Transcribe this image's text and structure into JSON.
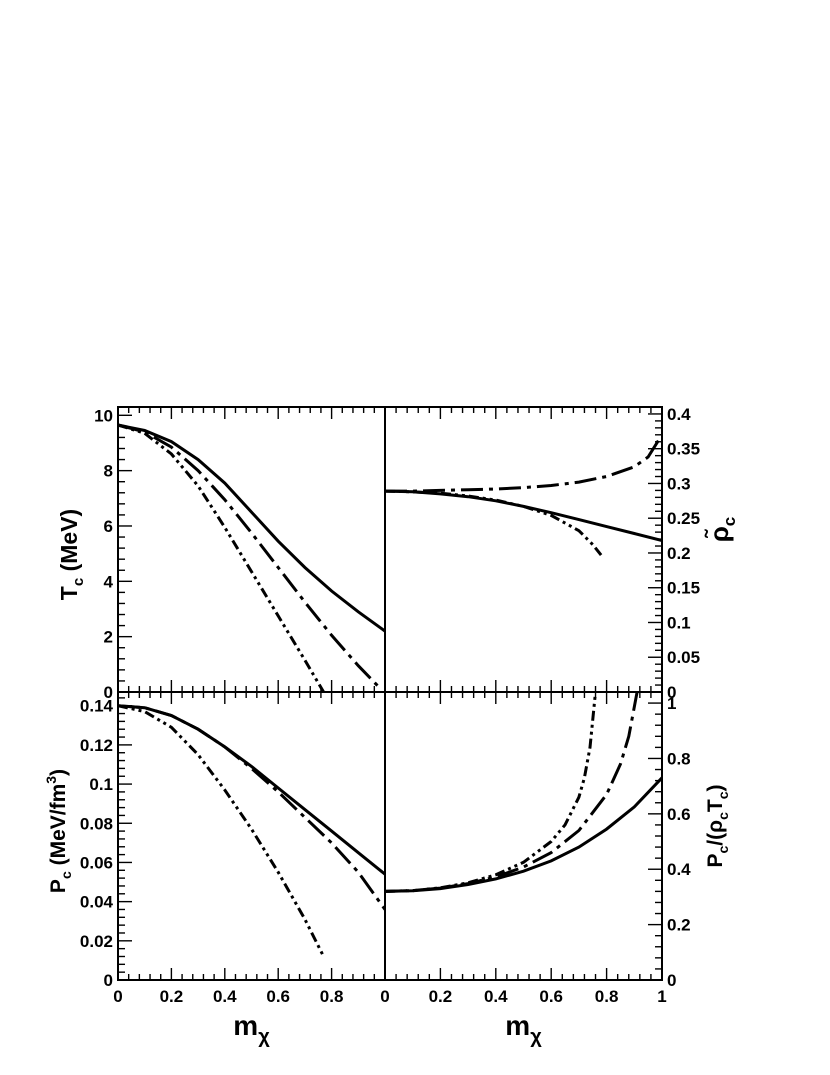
{
  "chart_data": [
    {
      "panel": "top-left",
      "type": "line",
      "ylabel_main": "T",
      "ylabel_sub": "c",
      "ylabel_unit": " (MeV)",
      "ylim": [
        0,
        10.3
      ],
      "yticks": [
        "0",
        "2",
        "4",
        "6",
        "8",
        "10"
      ],
      "ytick_values": [
        0,
        2,
        4,
        6,
        8,
        10
      ],
      "xlim": [
        0,
        1
      ],
      "series": [
        {
          "style": "solid",
          "x": [
            0,
            0.1,
            0.2,
            0.3,
            0.4,
            0.5,
            0.6,
            0.7,
            0.8,
            0.9,
            1.0
          ],
          "y": [
            9.65,
            9.45,
            9.05,
            8.4,
            7.55,
            6.5,
            5.45,
            4.5,
            3.65,
            2.9,
            2.2
          ]
        },
        {
          "style": "dash-dot",
          "x": [
            0,
            0.1,
            0.2,
            0.3,
            0.4,
            0.5,
            0.6,
            0.7,
            0.8,
            0.9,
            0.985
          ],
          "y": [
            9.65,
            9.4,
            8.85,
            8.0,
            6.95,
            5.75,
            4.5,
            3.25,
            2.05,
            0.95,
            0.1
          ]
        },
        {
          "style": "dash-dot-dot",
          "x": [
            0,
            0.1,
            0.2,
            0.3,
            0.4,
            0.5,
            0.6,
            0.7,
            0.77
          ],
          "y": [
            9.65,
            9.35,
            8.6,
            7.45,
            5.95,
            4.35,
            2.75,
            1.15,
            0.0
          ]
        }
      ]
    },
    {
      "panel": "top-right",
      "type": "line",
      "ylabel_main": "ρ̃",
      "ylabel_sub": "c",
      "ylim": [
        0,
        0.41
      ],
      "yticks": [
        "0",
        "0.05",
        "0.1",
        "0.15",
        "0.2",
        "0.25",
        "0.3",
        "0.35",
        "0.4"
      ],
      "ytick_values": [
        0,
        0.05,
        0.1,
        0.15,
        0.2,
        0.25,
        0.3,
        0.35,
        0.4
      ],
      "xlim": [
        0,
        1
      ],
      "series": [
        {
          "style": "solid",
          "x": [
            0,
            0.1,
            0.2,
            0.3,
            0.4,
            0.5,
            0.6,
            0.7,
            0.8,
            0.9,
            1.0
          ],
          "y": [
            0.289,
            0.288,
            0.285,
            0.281,
            0.275,
            0.267,
            0.258,
            0.248,
            0.238,
            0.228,
            0.218
          ]
        },
        {
          "style": "dash-dot",
          "x": [
            0,
            0.1,
            0.2,
            0.3,
            0.4,
            0.5,
            0.6,
            0.7,
            0.8,
            0.9,
            0.95,
            1.0
          ],
          "y": [
            0.289,
            0.289,
            0.29,
            0.291,
            0.292,
            0.294,
            0.297,
            0.302,
            0.31,
            0.324,
            0.338,
            0.37
          ]
        },
        {
          "style": "dash-dot-dot",
          "x": [
            0,
            0.1,
            0.2,
            0.3,
            0.4,
            0.5,
            0.6,
            0.7,
            0.75,
            0.78
          ],
          "y": [
            0.289,
            0.288,
            0.286,
            0.282,
            0.276,
            0.267,
            0.254,
            0.232,
            0.212,
            0.197
          ]
        }
      ]
    },
    {
      "panel": "bottom-left",
      "type": "line",
      "ylabel_main": "P",
      "ylabel_sub": "c",
      "ylabel_unit": " (MeV/fm",
      "ylabel_sup": "3",
      "ylabel_close": ")",
      "xlabel_main": "m",
      "xlabel_sub": "χ",
      "ylim": [
        0,
        0.147
      ],
      "yticks": [
        "0",
        "0.02",
        "0.04",
        "0.06",
        "0.08",
        "0.1",
        "0.12",
        "0.14"
      ],
      "ytick_values": [
        0,
        0.02,
        0.04,
        0.06,
        0.08,
        0.1,
        0.12,
        0.14
      ],
      "xlim": [
        0,
        1
      ],
      "xticks": [
        "0",
        "0.2",
        "0.4",
        "0.6",
        "0.8"
      ],
      "xtick_values": [
        0,
        0.2,
        0.4,
        0.6,
        0.8
      ],
      "series": [
        {
          "style": "solid",
          "x": [
            0,
            0.1,
            0.2,
            0.3,
            0.4,
            0.5,
            0.6,
            0.7,
            0.8,
            0.9,
            1.0
          ],
          "y": [
            0.14,
            0.139,
            0.135,
            0.128,
            0.119,
            0.109,
            0.098,
            0.087,
            0.076,
            0.065,
            0.054
          ]
        },
        {
          "style": "dash-dot",
          "x": [
            0,
            0.1,
            0.2,
            0.3,
            0.4,
            0.5,
            0.6,
            0.7,
            0.8,
            0.9,
            1.0
          ],
          "y": [
            0.14,
            0.139,
            0.135,
            0.128,
            0.119,
            0.108,
            0.096,
            0.083,
            0.07,
            0.055,
            0.036
          ]
        },
        {
          "style": "dash-dot-dot",
          "x": [
            0,
            0.1,
            0.2,
            0.3,
            0.4,
            0.5,
            0.6,
            0.7,
            0.77
          ],
          "y": [
            0.14,
            0.137,
            0.129,
            0.115,
            0.097,
            0.077,
            0.055,
            0.031,
            0.012
          ]
        }
      ]
    },
    {
      "panel": "bottom-right",
      "type": "line",
      "ylabel_main": "P",
      "ylabel_sub": "c",
      "ylabel_unit": "/(ρ",
      "ylabel_sub2": "c",
      "ylabel_mid": "T",
      "ylabel_sub3": "c",
      "ylabel_close": ")",
      "xlabel_main": "m",
      "xlabel_sub": "χ",
      "ylim": [
        0,
        1.04
      ],
      "yticks": [
        "0",
        "0.2",
        "0.4",
        "0.6",
        "0.8",
        "1"
      ],
      "ytick_values": [
        0,
        0.2,
        0.4,
        0.6,
        0.8,
        1
      ],
      "xlim": [
        0,
        1
      ],
      "xticks": [
        "0",
        "0.2",
        "0.4",
        "0.6",
        "0.8",
        "1"
      ],
      "xtick_values": [
        0,
        0.2,
        0.4,
        0.6,
        0.8,
        1
      ],
      "series": [
        {
          "style": "solid",
          "x": [
            0,
            0.1,
            0.2,
            0.3,
            0.4,
            0.5,
            0.6,
            0.7,
            0.8,
            0.9,
            1.0
          ],
          "y": [
            0.32,
            0.322,
            0.33,
            0.345,
            0.365,
            0.393,
            0.43,
            0.48,
            0.545,
            0.625,
            0.73
          ]
        },
        {
          "style": "dash-dot",
          "x": [
            0,
            0.1,
            0.2,
            0.3,
            0.4,
            0.5,
            0.6,
            0.7,
            0.8,
            0.85,
            0.88,
            0.91
          ],
          "y": [
            0.32,
            0.323,
            0.332,
            0.348,
            0.372,
            0.408,
            0.46,
            0.54,
            0.67,
            0.78,
            0.88,
            1.04
          ]
        },
        {
          "style": "dash-dot-dot",
          "x": [
            0,
            0.1,
            0.2,
            0.3,
            0.4,
            0.5,
            0.6,
            0.65,
            0.7,
            0.72,
            0.74,
            0.76
          ],
          "y": [
            0.32,
            0.323,
            0.333,
            0.351,
            0.38,
            0.425,
            0.5,
            0.56,
            0.66,
            0.73,
            0.84,
            1.04
          ]
        }
      ]
    }
  ]
}
